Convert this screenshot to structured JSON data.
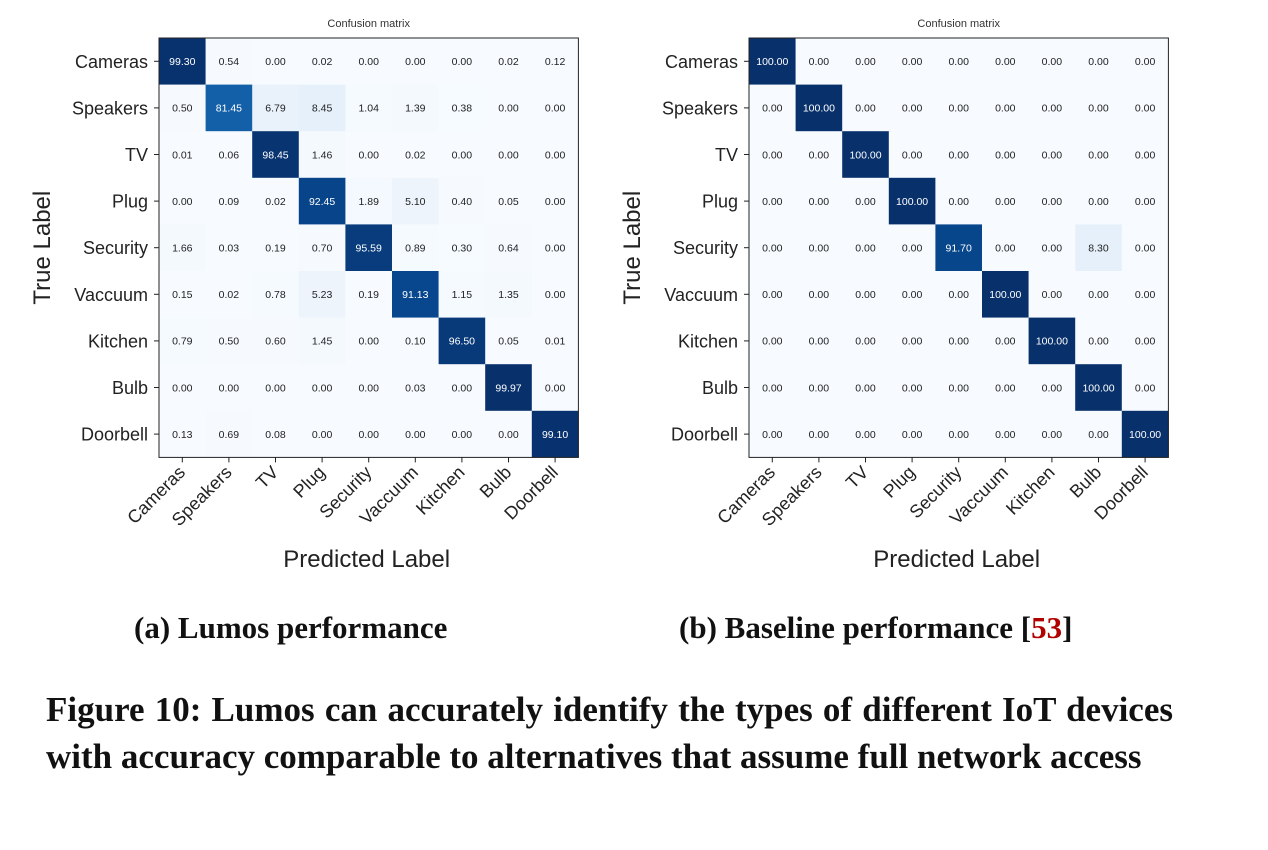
{
  "chart_data": [
    {
      "type": "heatmap",
      "title": "Confusion matrix",
      "xlabel": "Predicted Label",
      "ylabel": "True Label",
      "labels": [
        "Cameras",
        "Speakers",
        "TV",
        "Plug",
        "Security",
        "Vaccuum",
        "Kitchen",
        "Bulb",
        "Doorbell"
      ],
      "colormap": "Blues",
      "value_range": [
        0,
        100
      ],
      "matrix": [
        [
          "99.30",
          "0.54",
          "0.00",
          "0.02",
          "0.00",
          "0.00",
          "0.00",
          "0.02",
          "0.12"
        ],
        [
          "0.50",
          "81.45",
          "6.79",
          "8.45",
          "1.04",
          "1.39",
          "0.38",
          "0.00",
          "0.00"
        ],
        [
          "0.01",
          "0.06",
          "98.45",
          "1.46",
          "0.00",
          "0.02",
          "0.00",
          "0.00",
          "0.00"
        ],
        [
          "0.00",
          "0.09",
          "0.02",
          "92.45",
          "1.89",
          "5.10",
          "0.40",
          "0.05",
          "0.00"
        ],
        [
          "1.66",
          "0.03",
          "0.19",
          "0.70",
          "95.59",
          "0.89",
          "0.30",
          "0.64",
          "0.00"
        ],
        [
          "0.15",
          "0.02",
          "0.78",
          "5.23",
          "0.19",
          "91.13",
          "1.15",
          "1.35",
          "0.00"
        ],
        [
          "0.79",
          "0.50",
          "0.60",
          "1.45",
          "0.00",
          "0.10",
          "96.50",
          "0.05",
          "0.01"
        ],
        [
          "0.00",
          "0.00",
          "0.00",
          "0.00",
          "0.00",
          "0.03",
          "0.00",
          "99.97",
          "0.00"
        ],
        [
          "0.13",
          "0.69",
          "0.08",
          "0.00",
          "0.00",
          "0.00",
          "0.00",
          "0.00",
          "99.10"
        ]
      ]
    },
    {
      "type": "heatmap",
      "title": "Confusion matrix",
      "xlabel": "Predicted Label",
      "ylabel": "True Label",
      "labels": [
        "Cameras",
        "Speakers",
        "TV",
        "Plug",
        "Security",
        "Vaccuum",
        "Kitchen",
        "Bulb",
        "Doorbell"
      ],
      "colormap": "Blues",
      "value_range": [
        0,
        100
      ],
      "matrix": [
        [
          "100.00",
          "0.00",
          "0.00",
          "0.00",
          "0.00",
          "0.00",
          "0.00",
          "0.00",
          "0.00"
        ],
        [
          "0.00",
          "100.00",
          "0.00",
          "0.00",
          "0.00",
          "0.00",
          "0.00",
          "0.00",
          "0.00"
        ],
        [
          "0.00",
          "0.00",
          "100.00",
          "0.00",
          "0.00",
          "0.00",
          "0.00",
          "0.00",
          "0.00"
        ],
        [
          "0.00",
          "0.00",
          "0.00",
          "100.00",
          "0.00",
          "0.00",
          "0.00",
          "0.00",
          "0.00"
        ],
        [
          "0.00",
          "0.00",
          "0.00",
          "0.00",
          "91.70",
          "0.00",
          "0.00",
          "8.30",
          "0.00"
        ],
        [
          "0.00",
          "0.00",
          "0.00",
          "0.00",
          "0.00",
          "100.00",
          "0.00",
          "0.00",
          "0.00"
        ],
        [
          "0.00",
          "0.00",
          "0.00",
          "0.00",
          "0.00",
          "0.00",
          "100.00",
          "0.00",
          "0.00"
        ],
        [
          "0.00",
          "0.00",
          "0.00",
          "0.00",
          "0.00",
          "0.00",
          "0.00",
          "100.00",
          "0.00"
        ],
        [
          "0.00",
          "0.00",
          "0.00",
          "0.00",
          "0.00",
          "0.00",
          "0.00",
          "0.00",
          "100.00"
        ]
      ]
    }
  ],
  "subcaptions": {
    "a": "(a) Lumos performance",
    "b_prefix": "(b) Baseline performance [",
    "b_ref": "53",
    "b_suffix": "]"
  },
  "figure_caption": "Figure 10: Lumos can accurately identify the types of different IoT devices with accuracy comparable to alternatives that assume full network access",
  "colors": {
    "reference": "#b00000"
  }
}
